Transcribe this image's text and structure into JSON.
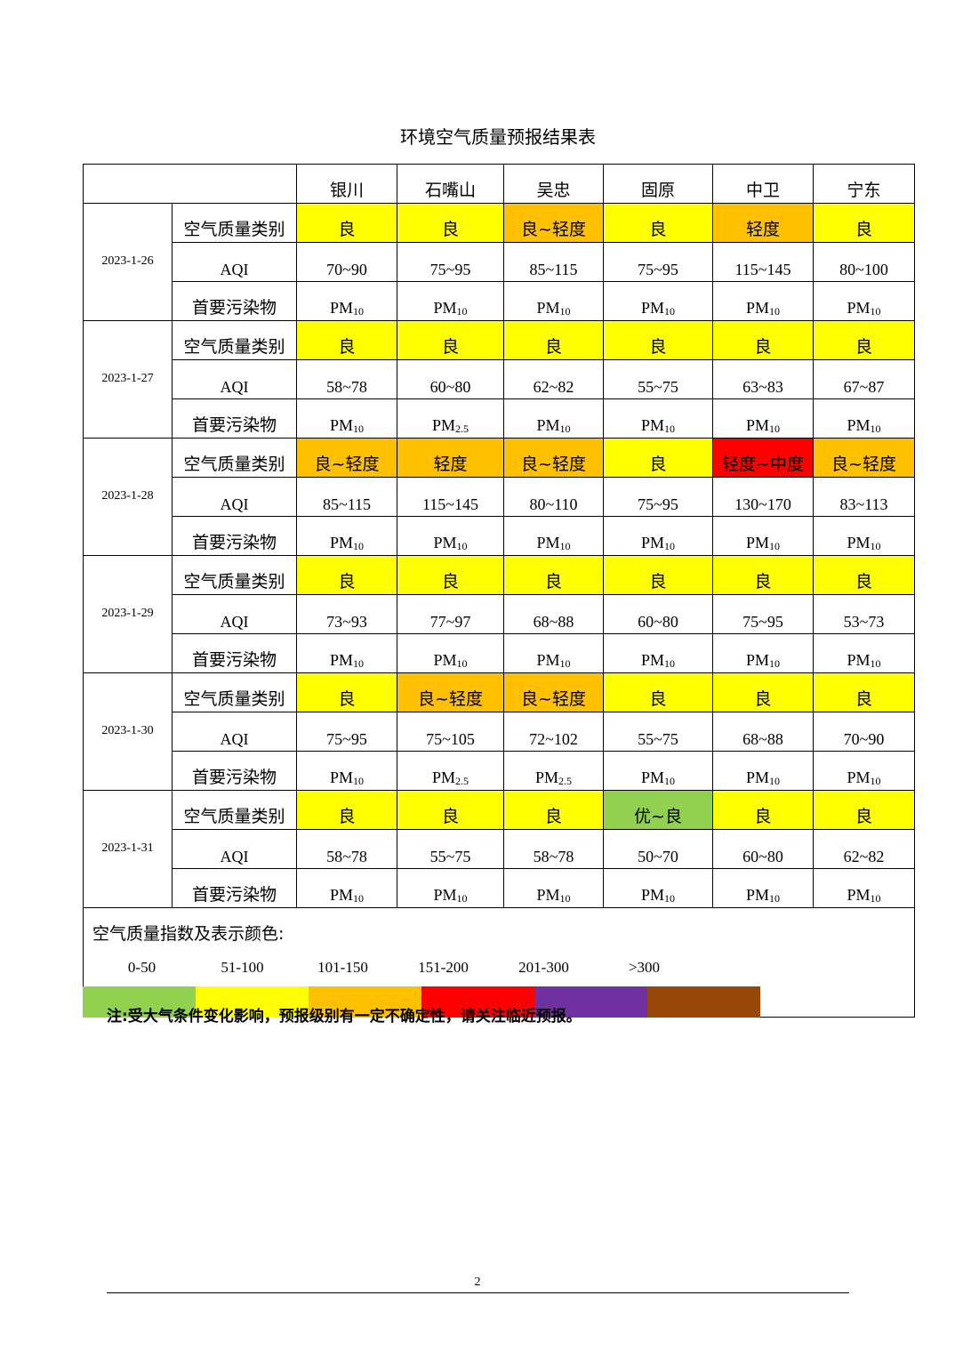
{
  "title": "环境空气质量预报结果表",
  "cities": [
    "银川",
    "石嘴山",
    "吴忠",
    "固原",
    "中卫",
    "宁东"
  ],
  "row_labels": {
    "category": "空气质量类别",
    "aqi": "AQI",
    "pollutant": "首要污染物"
  },
  "category_colors": {
    "优~良": "#92D050",
    "良": "#FFFF00",
    "良~轻度": "#FFC000",
    "轻度": "#FFC000",
    "轻度~中度": "#FF0000"
  },
  "days": [
    {
      "date": "2023-1-26",
      "category": [
        "良",
        "良",
        "良~轻度",
        "良",
        "轻度",
        "良"
      ],
      "aqi": [
        "70~90",
        "75~95",
        "85~115",
        "75~95",
        "115~145",
        "80~100"
      ],
      "pollutant": [
        "PM10",
        "PM10",
        "PM10",
        "PM10",
        "PM10",
        "PM10"
      ]
    },
    {
      "date": "2023-1-27",
      "category": [
        "良",
        "良",
        "良",
        "良",
        "良",
        "良"
      ],
      "aqi": [
        "58~78",
        "60~80",
        "62~82",
        "55~75",
        "63~83",
        "67~87"
      ],
      "pollutant": [
        "PM10",
        "PM2.5",
        "PM10",
        "PM10",
        "PM10",
        "PM10"
      ]
    },
    {
      "date": "2023-1-28",
      "category": [
        "良~轻度",
        "轻度",
        "良~轻度",
        "良",
        "轻度~中度",
        "良~轻度"
      ],
      "aqi": [
        "85~115",
        "115~145",
        "80~110",
        "75~95",
        "130~170",
        "83~113"
      ],
      "pollutant": [
        "PM10",
        "PM10",
        "PM10",
        "PM10",
        "PM10",
        "PM10"
      ]
    },
    {
      "date": "2023-1-29",
      "category": [
        "良",
        "良",
        "良",
        "良",
        "良",
        "良"
      ],
      "aqi": [
        "73~93",
        "77~97",
        "68~88",
        "60~80",
        "75~95",
        "53~73"
      ],
      "pollutant": [
        "PM10",
        "PM10",
        "PM10",
        "PM10",
        "PM10",
        "PM10"
      ]
    },
    {
      "date": "2023-1-30",
      "category": [
        "良",
        "良~轻度",
        "良~轻度",
        "良",
        "良",
        "良"
      ],
      "aqi": [
        "75~95",
        "75~105",
        "72~102",
        "55~75",
        "68~88",
        "70~90"
      ],
      "pollutant": [
        "PM10",
        "PM2.5",
        "PM2.5",
        "PM10",
        "PM10",
        "PM10"
      ]
    },
    {
      "date": "2023-1-31",
      "category": [
        "良",
        "良",
        "良",
        "优~良",
        "良",
        "良"
      ],
      "aqi": [
        "58~78",
        "55~75",
        "58~78",
        "50~70",
        "60~80",
        "62~82"
      ],
      "pollutant": [
        "PM10",
        "PM10",
        "PM10",
        "PM10",
        "PM10",
        "PM10"
      ]
    }
  ],
  "legend": {
    "title": "空气质量指数及表示颜色:",
    "items": [
      {
        "range": "0-50",
        "color": "#92D050"
      },
      {
        "range": "51-100",
        "color": "#FFFF00"
      },
      {
        "range": "101-150",
        "color": "#FFC000"
      },
      {
        "range": "151-200",
        "color": "#FF0000"
      },
      {
        "range": "201-300",
        "color": "#7030A0"
      },
      {
        "range": ">300",
        "color": "#974706"
      }
    ]
  },
  "note": "注:受大气条件变化影响，预报级别有一定不确定性，请关注临近预报。",
  "page_number": "2"
}
